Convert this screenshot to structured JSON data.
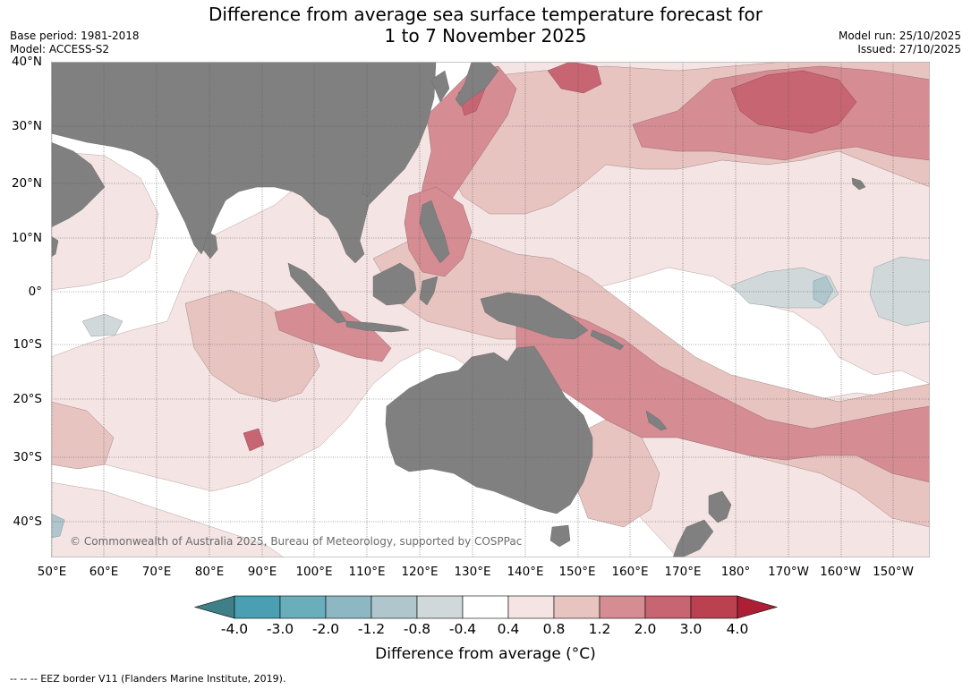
{
  "header": {
    "title_line1": "Difference from average sea surface temperature forecast for",
    "title_line2": "1 to 7 November 2025",
    "base_period": "Base period: 1981-2018",
    "model": "Model: ACCESS-S2",
    "model_run": "Model run: 25/10/2025",
    "issued": "Issued: 27/10/2025"
  },
  "map": {
    "lat_labels": [
      "40°N",
      "30°N",
      "20°N",
      "10°N",
      "0°",
      "10°S",
      "20°S",
      "30°S",
      "40°S"
    ],
    "lon_labels": [
      "50°E",
      "60°E",
      "70°E",
      "80°E",
      "90°E",
      "100°E",
      "110°E",
      "120°E",
      "130°E",
      "140°E",
      "150°E",
      "160°E",
      "170°E",
      "180°",
      "170°W",
      "160°W",
      "150°W"
    ],
    "copyright": "© Commonwealth of Australia 2025, Bureau of Meteorology, supported by COSPPac",
    "land_color": "#808080",
    "grid_color": "#555555"
  },
  "legend": {
    "title": "Difference from average (°C)",
    "tick_labels": [
      "-4.0",
      "-3.0",
      "-2.0",
      "-1.2",
      "-0.8",
      "-0.4",
      "0.4",
      "0.8",
      "1.2",
      "2.0",
      "3.0",
      "4.0"
    ],
    "colors": [
      "#3f7f88",
      "#4a9fb2",
      "#6aadbb",
      "#8db8c3",
      "#aec6cc",
      "#d0d8da",
      "#ffffff",
      "#f4e4e3",
      "#e8c4c1",
      "#d58c93",
      "#c86572",
      "#bb4150",
      "#ad1f35"
    ]
  },
  "footnote": "--  --  -- EEZ border V11 (Flanders Marine Institute, 2019)."
}
